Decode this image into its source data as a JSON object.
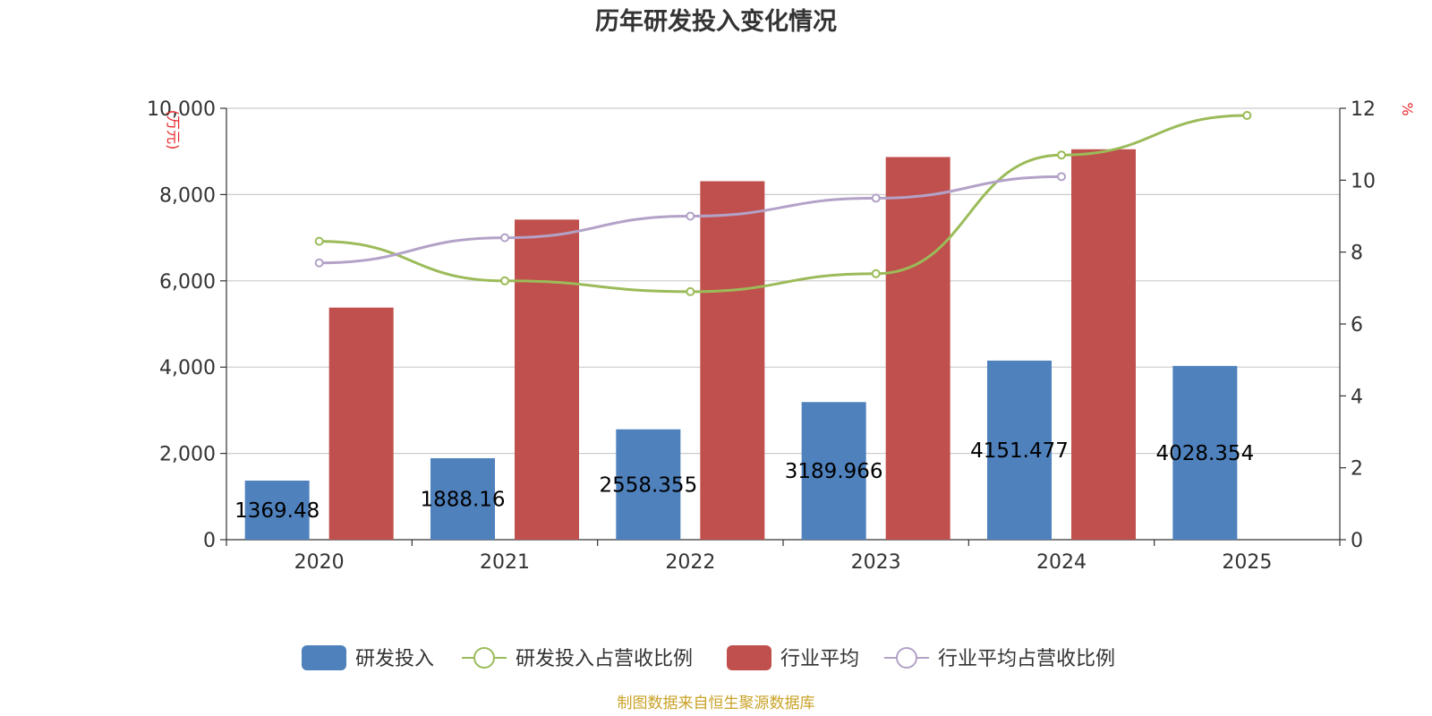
{
  "chart_data": {
    "type": "bar",
    "title": "历年研发投入变化情况",
    "categories": [
      "2020",
      "2021",
      "2022",
      "2023",
      "2024",
      "2025"
    ],
    "y_left": {
      "unit": "(万元)",
      "min": 0,
      "max": 10000,
      "ticks": [
        "0",
        "2,000",
        "4,000",
        "6,000",
        "8,000",
        "10,000"
      ],
      "tick_values": [
        0,
        2000,
        4000,
        6000,
        8000,
        10000
      ]
    },
    "y_right": {
      "unit": "%",
      "min": 0,
      "max": 12,
      "ticks": [
        "0",
        "2",
        "4",
        "6",
        "8",
        "10",
        "12"
      ],
      "tick_values": [
        0,
        2,
        4,
        6,
        8,
        10,
        12
      ]
    },
    "grid": true,
    "legend_position": "bottom",
    "series": [
      {
        "name": "研发投入",
        "kind": "bar",
        "axis": "left",
        "color": "#4f81bd",
        "values": [
          1369.48,
          1888.16,
          2558.355,
          3189.966,
          4151.477,
          4028.354
        ],
        "labels": [
          "1369.48",
          "1888.16",
          "2558.355",
          "3189.966",
          "4151.477",
          "4028.354"
        ]
      },
      {
        "name": "研发投入占营收比例",
        "kind": "line",
        "axis": "right",
        "color": "#9bbb59",
        "values": [
          8.3,
          7.2,
          6.9,
          7.4,
          10.7,
          11.8
        ]
      },
      {
        "name": "行业平均",
        "kind": "bar",
        "axis": "left",
        "color": "#c0504d",
        "values": [
          5380,
          7420,
          8310,
          8870,
          9050,
          null
        ]
      },
      {
        "name": "行业平均占营收比例",
        "kind": "line",
        "axis": "right",
        "color": "#b3a2c7",
        "values": [
          7.7,
          8.4,
          9.0,
          9.5,
          10.1,
          null
        ]
      }
    ]
  },
  "source_text": "制图数据来自恒生聚源数据库"
}
